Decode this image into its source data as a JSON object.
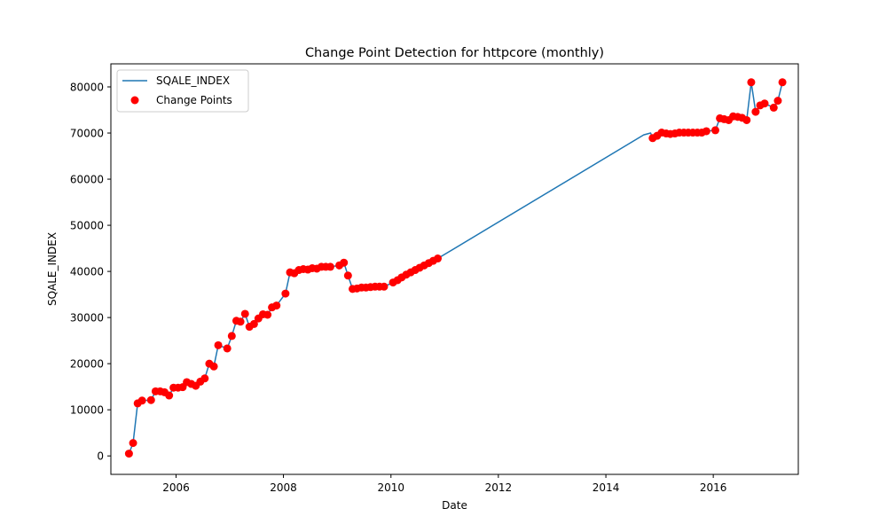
{
  "chart_data": {
    "type": "line",
    "title": "Change Point Detection for httpcore (monthly)",
    "xlabel": "Date",
    "ylabel": "SQALE_INDEX",
    "xlim": [
      "2004-10-15",
      "2017-08-01"
    ],
    "ylim": [
      -4000,
      85000
    ],
    "x_ticks": [
      "2006",
      "2008",
      "2010",
      "2012",
      "2014",
      "2016"
    ],
    "y_ticks": [
      0,
      10000,
      20000,
      30000,
      40000,
      50000,
      60000,
      70000,
      80000
    ],
    "y_tick_labels": [
      "0",
      "10000",
      "20000",
      "30000",
      "40000",
      "50000",
      "60000",
      "70000",
      "80000"
    ],
    "grid": false,
    "legend": {
      "position": "top-left",
      "entries": [
        {
          "label": "SQALE_INDEX",
          "kind": "line",
          "color": "#1f77b4"
        },
        {
          "label": "Change Points",
          "kind": "marker",
          "color": "#ff0000"
        }
      ]
    },
    "series": [
      {
        "name": "SQALE_INDEX",
        "color": "#1f77b4",
        "style": "line",
        "points": [
          [
            "2005-02-15",
            500
          ],
          [
            "2005-03-15",
            2800
          ],
          [
            "2005-04-15",
            11400
          ],
          [
            "2005-05-15",
            12000
          ],
          [
            "2005-07-15",
            12100
          ],
          [
            "2005-08-15",
            14000
          ],
          [
            "2005-09-15",
            14000
          ],
          [
            "2005-10-15",
            13800
          ],
          [
            "2005-11-15",
            13100
          ],
          [
            "2005-12-15",
            14800
          ],
          [
            "2006-01-15",
            14800
          ],
          [
            "2006-02-15",
            14900
          ],
          [
            "2006-03-15",
            16000
          ],
          [
            "2006-04-15",
            15600
          ],
          [
            "2006-05-15",
            15200
          ],
          [
            "2006-06-15",
            16100
          ],
          [
            "2006-07-15",
            16800
          ],
          [
            "2006-08-15",
            20000
          ],
          [
            "2006-09-15",
            19400
          ],
          [
            "2006-10-15",
            24000
          ],
          [
            "2006-12-15",
            23300
          ],
          [
            "2007-01-15",
            26000
          ],
          [
            "2007-02-15",
            29300
          ],
          [
            "2007-03-15",
            29100
          ],
          [
            "2007-04-15",
            30800
          ],
          [
            "2007-05-15",
            28000
          ],
          [
            "2007-06-15",
            28600
          ],
          [
            "2007-07-15",
            29800
          ],
          [
            "2007-08-15",
            30700
          ],
          [
            "2007-09-15",
            30600
          ],
          [
            "2007-10-15",
            32200
          ],
          [
            "2007-11-15",
            32600
          ],
          [
            "2008-01-15",
            35200
          ],
          [
            "2008-02-15",
            39800
          ],
          [
            "2008-03-15",
            39600
          ],
          [
            "2008-04-15",
            40300
          ],
          [
            "2008-05-15",
            40500
          ],
          [
            "2008-06-15",
            40400
          ],
          [
            "2008-07-15",
            40700
          ],
          [
            "2008-08-15",
            40600
          ],
          [
            "2008-09-15",
            41000
          ],
          [
            "2008-10-15",
            41000
          ],
          [
            "2008-11-15",
            41000
          ],
          [
            "2009-01-15",
            41300
          ],
          [
            "2009-02-15",
            41900
          ],
          [
            "2009-03-15",
            39100
          ],
          [
            "2009-04-15",
            36200
          ],
          [
            "2009-05-15",
            36300
          ],
          [
            "2009-06-15",
            36500
          ],
          [
            "2009-07-15",
            36500
          ],
          [
            "2009-08-15",
            36600
          ],
          [
            "2009-09-15",
            36700
          ],
          [
            "2009-10-15",
            36700
          ],
          [
            "2009-11-15",
            36700
          ],
          [
            "2010-01-15",
            37600
          ],
          [
            "2010-02-15",
            38100
          ],
          [
            "2010-03-15",
            38700
          ],
          [
            "2010-04-15",
            39300
          ],
          [
            "2010-05-15",
            39800
          ],
          [
            "2010-06-15",
            40300
          ],
          [
            "2010-07-15",
            40800
          ],
          [
            "2010-08-15",
            41300
          ],
          [
            "2010-09-15",
            41800
          ],
          [
            "2010-10-15",
            42300
          ],
          [
            "2010-11-15",
            42800
          ],
          [
            "2014-09-15",
            69600
          ],
          [
            "2014-11-01",
            70000
          ],
          [
            "2014-11-15",
            68900
          ],
          [
            "2014-12-15",
            69400
          ],
          [
            "2015-01-15",
            70100
          ],
          [
            "2015-02-15",
            69900
          ],
          [
            "2015-03-15",
            69800
          ],
          [
            "2015-04-15",
            69900
          ],
          [
            "2015-05-15",
            70100
          ],
          [
            "2015-06-15",
            70100
          ],
          [
            "2015-07-15",
            70100
          ],
          [
            "2015-08-15",
            70100
          ],
          [
            "2015-09-15",
            70100
          ],
          [
            "2015-10-15",
            70100
          ],
          [
            "2015-11-15",
            70400
          ],
          [
            "2016-01-15",
            70600
          ],
          [
            "2016-02-15",
            73200
          ],
          [
            "2016-03-15",
            73000
          ],
          [
            "2016-04-15",
            72800
          ],
          [
            "2016-05-15",
            73600
          ],
          [
            "2016-06-15",
            73500
          ],
          [
            "2016-07-15",
            73300
          ],
          [
            "2016-08-15",
            72800
          ],
          [
            "2016-09-15",
            81000
          ],
          [
            "2016-10-15",
            74600
          ],
          [
            "2016-11-15",
            76000
          ],
          [
            "2016-12-15",
            76400
          ],
          [
            "2017-02-15",
            75500
          ],
          [
            "2017-03-15",
            77000
          ],
          [
            "2017-04-15",
            81000
          ]
        ]
      },
      {
        "name": "Change Points",
        "color": "#ff0000",
        "style": "scatter",
        "points": [
          [
            "2005-02-15",
            500
          ],
          [
            "2005-03-15",
            2800
          ],
          [
            "2005-04-15",
            11400
          ],
          [
            "2005-05-15",
            12000
          ],
          [
            "2005-07-15",
            12100
          ],
          [
            "2005-08-15",
            14000
          ],
          [
            "2005-09-15",
            14000
          ],
          [
            "2005-10-15",
            13800
          ],
          [
            "2005-11-15",
            13100
          ],
          [
            "2005-12-15",
            14800
          ],
          [
            "2006-01-15",
            14800
          ],
          [
            "2006-02-15",
            14900
          ],
          [
            "2006-03-15",
            16000
          ],
          [
            "2006-04-15",
            15600
          ],
          [
            "2006-05-15",
            15200
          ],
          [
            "2006-06-15",
            16100
          ],
          [
            "2006-07-15",
            16800
          ],
          [
            "2006-08-15",
            20000
          ],
          [
            "2006-09-15",
            19400
          ],
          [
            "2006-10-15",
            24000
          ],
          [
            "2006-12-15",
            23300
          ],
          [
            "2007-01-15",
            26000
          ],
          [
            "2007-02-15",
            29300
          ],
          [
            "2007-03-15",
            29100
          ],
          [
            "2007-04-15",
            30800
          ],
          [
            "2007-05-15",
            28000
          ],
          [
            "2007-06-15",
            28600
          ],
          [
            "2007-07-15",
            29800
          ],
          [
            "2007-08-15",
            30700
          ],
          [
            "2007-09-15",
            30600
          ],
          [
            "2007-10-15",
            32200
          ],
          [
            "2007-11-15",
            32600
          ],
          [
            "2008-01-15",
            35200
          ],
          [
            "2008-02-15",
            39800
          ],
          [
            "2008-03-15",
            39600
          ],
          [
            "2008-04-15",
            40300
          ],
          [
            "2008-05-15",
            40500
          ],
          [
            "2008-06-15",
            40400
          ],
          [
            "2008-07-15",
            40700
          ],
          [
            "2008-08-15",
            40600
          ],
          [
            "2008-09-15",
            41000
          ],
          [
            "2008-10-15",
            41000
          ],
          [
            "2008-11-15",
            41000
          ],
          [
            "2009-01-15",
            41300
          ],
          [
            "2009-02-15",
            41900
          ],
          [
            "2009-03-15",
            39100
          ],
          [
            "2009-04-15",
            36200
          ],
          [
            "2009-05-15",
            36300
          ],
          [
            "2009-06-15",
            36500
          ],
          [
            "2009-07-15",
            36500
          ],
          [
            "2009-08-15",
            36600
          ],
          [
            "2009-09-15",
            36700
          ],
          [
            "2009-10-15",
            36700
          ],
          [
            "2009-11-15",
            36700
          ],
          [
            "2010-01-15",
            37600
          ],
          [
            "2010-02-15",
            38100
          ],
          [
            "2010-03-15",
            38700
          ],
          [
            "2010-04-15",
            39300
          ],
          [
            "2010-05-15",
            39800
          ],
          [
            "2010-06-15",
            40300
          ],
          [
            "2010-07-15",
            40800
          ],
          [
            "2010-08-15",
            41300
          ],
          [
            "2010-09-15",
            41800
          ],
          [
            "2010-10-15",
            42300
          ],
          [
            "2010-11-15",
            42800
          ],
          [
            "2014-11-15",
            68900
          ],
          [
            "2014-12-15",
            69400
          ],
          [
            "2015-01-15",
            70100
          ],
          [
            "2015-02-15",
            69900
          ],
          [
            "2015-03-15",
            69800
          ],
          [
            "2015-04-15",
            69900
          ],
          [
            "2015-05-15",
            70100
          ],
          [
            "2015-06-15",
            70100
          ],
          [
            "2015-07-15",
            70100
          ],
          [
            "2015-08-15",
            70100
          ],
          [
            "2015-09-15",
            70100
          ],
          [
            "2015-10-15",
            70100
          ],
          [
            "2015-11-15",
            70400
          ],
          [
            "2016-01-15",
            70600
          ],
          [
            "2016-02-15",
            73200
          ],
          [
            "2016-03-15",
            73000
          ],
          [
            "2016-04-15",
            72800
          ],
          [
            "2016-05-15",
            73600
          ],
          [
            "2016-06-15",
            73500
          ],
          [
            "2016-07-15",
            73300
          ],
          [
            "2016-08-15",
            72800
          ],
          [
            "2016-09-15",
            81000
          ],
          [
            "2016-10-15",
            74600
          ],
          [
            "2016-11-15",
            76000
          ],
          [
            "2016-12-15",
            76400
          ],
          [
            "2017-02-15",
            75500
          ],
          [
            "2017-03-15",
            77000
          ],
          [
            "2017-04-15",
            81000
          ]
        ]
      }
    ]
  }
}
